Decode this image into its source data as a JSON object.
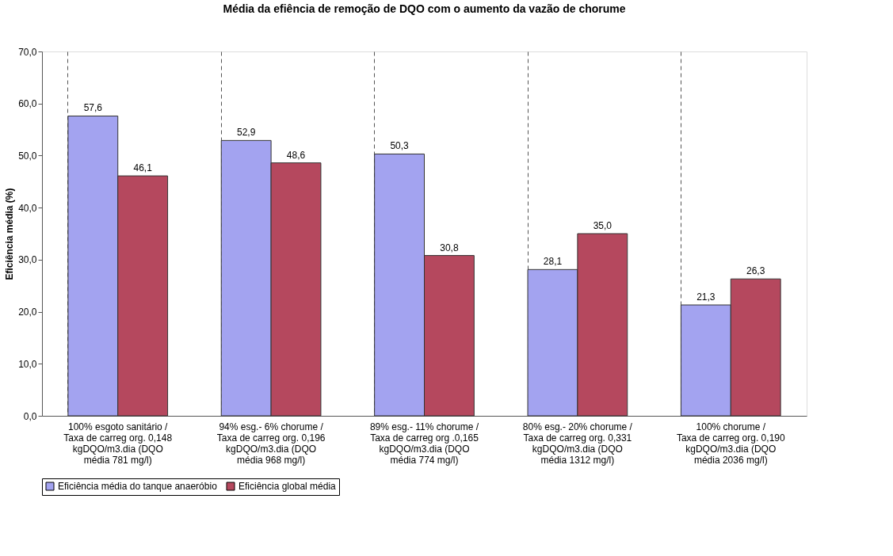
{
  "chart_data": {
    "type": "bar",
    "title": "Média da efiência de remoção de DQO com o aumento da vazão de chorume",
    "ylabel": "Eficiência média (%)",
    "categories": [
      "100% esgoto sanitário /\nTaxa de carreg org. 0,148\nkgDQO/m3.dia    (DQO\nmédia 781 mg/l)",
      "94% esg.- 6% chorume /\nTaxa de carreg org. 0,196\nkgDQO/m3.dia    (DQO\nmédia 968 mg/l)",
      "89% esg.- 11% chorume /\nTaxa de carreg org .0,165\nkgDQO/m3.dia   (DQO\nmédia 774 mg/l)",
      "80% esg.- 20% chorume /\nTaxa de carreg org. 0,331\nkgDQO/m3.dia    (DQO\nmédia 1312 mg/l)",
      "100% chorume /\nTaxa de carreg org. 0,190\nkgDQO/m3.dia         (DQO\nmédia 2036 mg/l)"
    ],
    "series": [
      {
        "name": "Eficiência média do tanque anaeróbio",
        "color": "#a3a3f0",
        "values": [
          57.6,
          52.9,
          50.3,
          28.1,
          21.3
        ],
        "value_labels": [
          "57,6",
          "52,9",
          "50,3",
          "28,1",
          "21,3"
        ]
      },
      {
        "name": "Eficiência global média",
        "color": "#b5485e",
        "values": [
          46.1,
          48.6,
          30.8,
          35.0,
          26.3
        ],
        "value_labels": [
          "46,1",
          "48,6",
          "30,8",
          "35,0",
          "26,3"
        ]
      }
    ],
    "ylim": [
      0,
      70
    ],
    "yticks": [
      {
        "value": 0,
        "label": "0,0"
      },
      {
        "value": 10,
        "label": "10,0"
      },
      {
        "value": 20,
        "label": "20,0"
      },
      {
        "value": 30,
        "label": "30,0"
      },
      {
        "value": 40,
        "label": "40,0"
      },
      {
        "value": 50,
        "label": "50,0"
      },
      {
        "value": 60,
        "label": "60,0"
      },
      {
        "value": 70,
        "label": "70,0"
      }
    ],
    "grid": "x",
    "legend": "bottom"
  }
}
